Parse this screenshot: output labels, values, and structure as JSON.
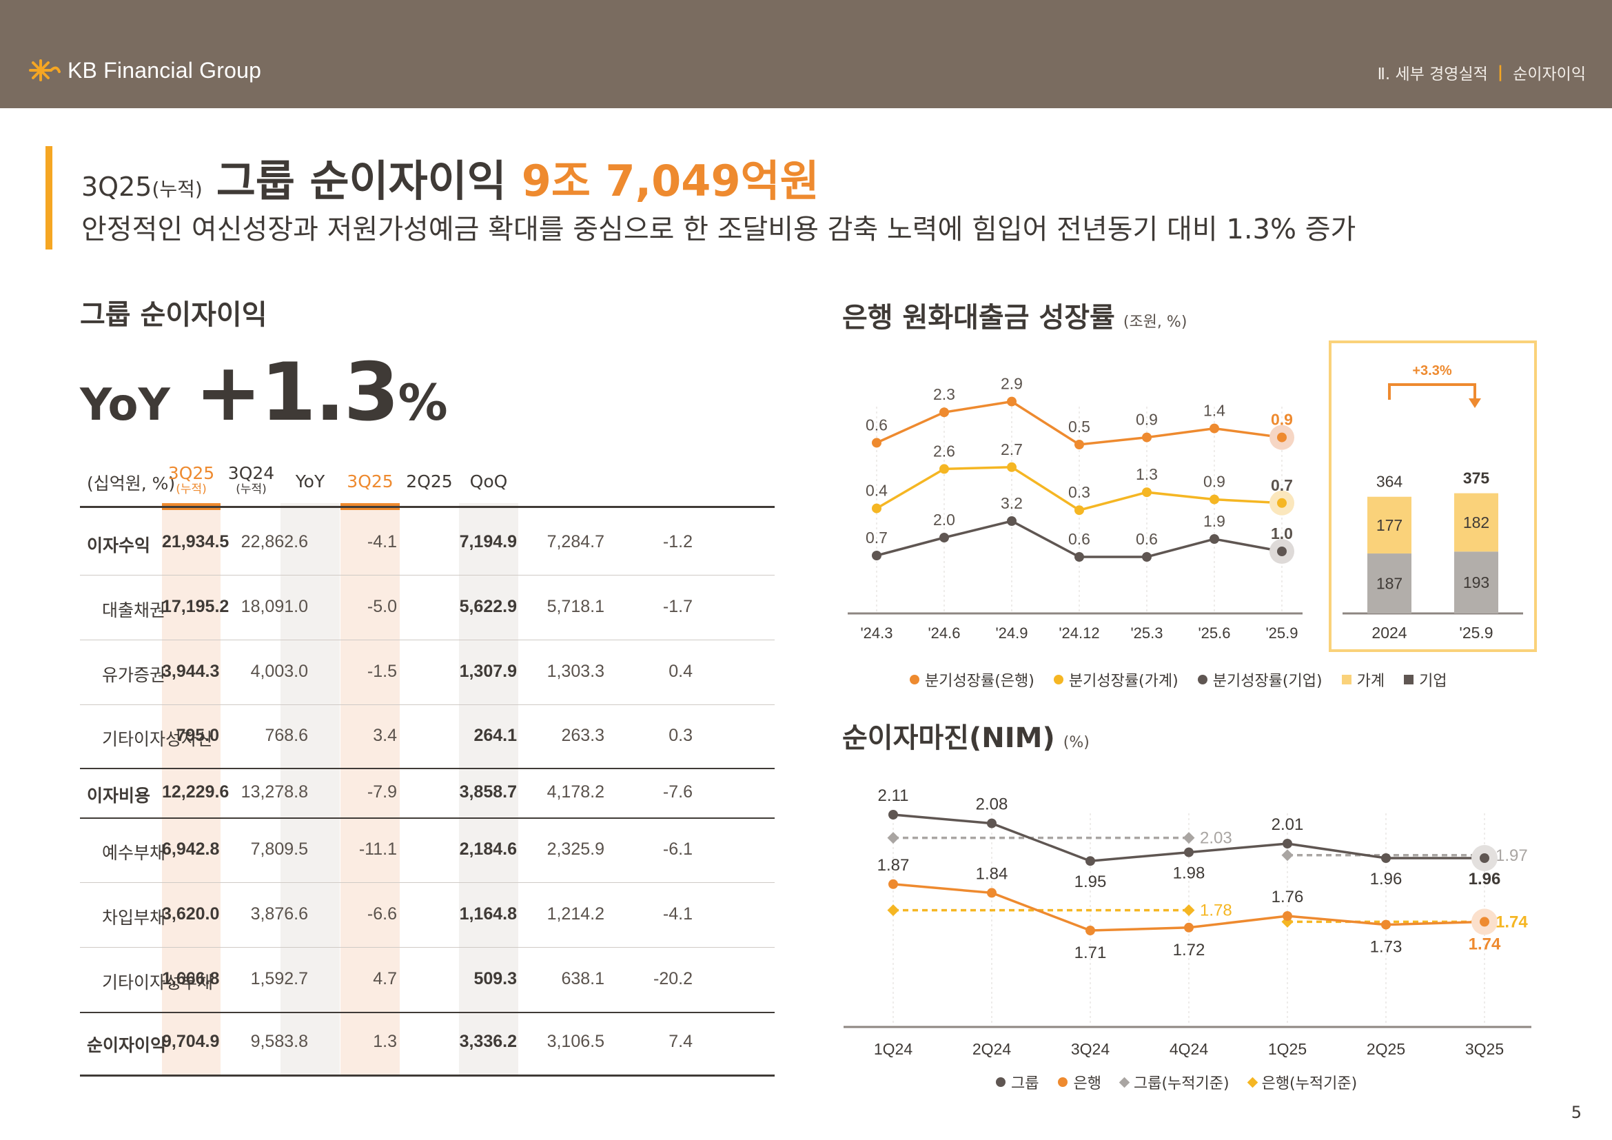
{
  "header": {
    "logo_text": "KB Financial Group",
    "section": "Ⅱ. 세부 경영실적",
    "subsection": "순이자이익",
    "brand_color": "#7a6c60",
    "accent": "#f5a623"
  },
  "headline": {
    "period": "3Q25",
    "note": "(누적)",
    "title": "그룹 순이자이익",
    "amount": "9조 7,049억원",
    "subtitle": "안정적인 여신성장과 저원가성예금 확대를 중심으로 한 조달비용 감축 노력에 힘입어 전년동기 대비 1.3% 증가"
  },
  "left": {
    "title": "그룹 순이자이익",
    "yoy_label": "YoY",
    "yoy_value": "+1.3",
    "yoy_pct": "%"
  },
  "chart_data": [
    {
      "type": "table",
      "unit": "(십억원, %)",
      "columns": [
        {
          "label": "3Q25",
          "sub": "(누적)"
        },
        {
          "label": "3Q24",
          "sub": "(누적)"
        },
        {
          "label": "YoY",
          "sub": ""
        },
        {
          "label": "3Q25",
          "sub": ""
        },
        {
          "label": "2Q25",
          "sub": ""
        },
        {
          "label": "QoQ",
          "sub": ""
        }
      ],
      "rows": [
        {
          "label": "이자수익",
          "bold": true,
          "values": [
            "21,934.5",
            "22,862.6",
            "-4.1",
            "7,194.9",
            "7,284.7",
            "-1.2"
          ]
        },
        {
          "label": "대출채권",
          "bold": false,
          "values": [
            "17,195.2",
            "18,091.0",
            "-5.0",
            "5,622.9",
            "5,718.1",
            "-1.7"
          ]
        },
        {
          "label": "유가증권",
          "bold": false,
          "values": [
            "3,944.3",
            "4,003.0",
            "-1.5",
            "1,307.9",
            "1,303.3",
            "0.4"
          ]
        },
        {
          "label": "기타이자성자산",
          "bold": false,
          "values": [
            "795.0",
            "768.6",
            "3.4",
            "264.1",
            "263.3",
            "0.3"
          ]
        },
        {
          "label": "이자비용",
          "bold": true,
          "values": [
            "12,229.6",
            "13,278.8",
            "-7.9",
            "3,858.7",
            "4,178.2",
            "-7.6"
          ]
        },
        {
          "label": "예수부채",
          "bold": false,
          "values": [
            "6,942.8",
            "7,809.5",
            "-11.1",
            "2,184.6",
            "2,325.9",
            "-6.1"
          ]
        },
        {
          "label": "차입부채",
          "bold": false,
          "values": [
            "3,620.0",
            "3,876.6",
            "-6.6",
            "1,164.8",
            "1,214.2",
            "-4.1"
          ]
        },
        {
          "label": "기타이자성부채",
          "bold": false,
          "values": [
            "1,666.8",
            "1,592.7",
            "4.7",
            "509.3",
            "638.1",
            "-20.2"
          ]
        },
        {
          "label": "순이자이익",
          "bold": true,
          "values": [
            "9,704.9",
            "9,583.8",
            "1.3",
            "3,336.2",
            "3,106.5",
            "7.4"
          ]
        }
      ]
    },
    {
      "type": "line",
      "title": "은행 원화대출금 성장률",
      "unit": "(조원, %)",
      "categories": [
        "'24.3",
        "'24.6",
        "'24.9",
        "'24.12",
        "'25.3",
        "'25.6",
        "'25.9"
      ],
      "series": [
        {
          "name": "분기성장률(은행)",
          "color": "#ee8a2f",
          "values": [
            0.6,
            2.3,
            2.9,
            0.5,
            0.9,
            1.4,
            0.9
          ]
        },
        {
          "name": "분기성장률(가계)",
          "color": "#f5b623",
          "values": [
            0.4,
            2.6,
            2.7,
            0.3,
            1.3,
            0.9,
            0.7
          ]
        },
        {
          "name": "분기성장률(기업)",
          "color": "#5f5652",
          "values": [
            0.7,
            2.0,
            3.2,
            0.6,
            0.6,
            1.9,
            1.0
          ]
        }
      ]
    },
    {
      "type": "bar",
      "stacked": true,
      "categories": [
        "2024",
        "'25.9"
      ],
      "series": [
        {
          "name": "기업",
          "color": "#b2aeaa",
          "values": [
            187,
            193
          ]
        },
        {
          "name": "가계",
          "color": "#fad27a",
          "values": [
            177,
            182
          ]
        }
      ],
      "totals": [
        364,
        375
      ],
      "growth_label": "+3.3%"
    },
    {
      "type": "line",
      "title": "순이자마진(NIM)",
      "unit": "(%)",
      "categories": [
        "1Q24",
        "2Q24",
        "3Q24",
        "4Q24",
        "1Q25",
        "2Q25",
        "3Q25"
      ],
      "series": [
        {
          "name": "그룹",
          "color": "#5f5652",
          "values": [
            2.11,
            2.08,
            1.95,
            1.98,
            2.01,
            1.96,
            1.96
          ]
        },
        {
          "name": "은행",
          "color": "#ee8a2f",
          "values": [
            1.87,
            1.84,
            1.71,
            1.72,
            1.76,
            1.73,
            1.74
          ]
        },
        {
          "name": "그룹(누적기준)",
          "color": "#a9a5a2",
          "values": [
            2.03,
            null,
            null,
            2.03,
            1.97,
            null,
            1.97
          ]
        },
        {
          "name": "은행(누적기준)",
          "color": "#f5b623",
          "values": [
            1.78,
            null,
            null,
            1.78,
            1.74,
            null,
            1.74
          ]
        }
      ]
    }
  ],
  "page_number": "5"
}
